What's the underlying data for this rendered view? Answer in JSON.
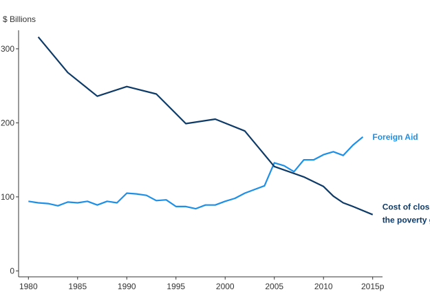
{
  "chart_data": {
    "type": "line",
    "unit_label": "$ Billions",
    "x_tick_labels": [
      "1980",
      "1985",
      "1990",
      "1995",
      "2000",
      "2005",
      "2010",
      "2015p"
    ],
    "x_ticks": [
      1980,
      1985,
      1990,
      1995,
      2000,
      2005,
      2010,
      2015
    ],
    "y_ticks": [
      0,
      100,
      200,
      300
    ],
    "xlim": [
      1979,
      2016
    ],
    "ylim": [
      -8,
      325
    ],
    "grid": false,
    "series": [
      {
        "name": "Foreign Aid",
        "label_lines": [
          "Foreign Aid"
        ],
        "color": "#1e8fe6",
        "points": [
          [
            1980,
            94
          ],
          [
            1981,
            92
          ],
          [
            1982,
            91
          ],
          [
            1983,
            88
          ],
          [
            1984,
            93
          ],
          [
            1985,
            92
          ],
          [
            1986,
            94
          ],
          [
            1987,
            89
          ],
          [
            1988,
            94
          ],
          [
            1989,
            92
          ],
          [
            1990,
            105
          ],
          [
            1991,
            104
          ],
          [
            1992,
            102
          ],
          [
            1993,
            95
          ],
          [
            1994,
            96
          ],
          [
            1995,
            87
          ],
          [
            1996,
            87
          ],
          [
            1997,
            84
          ],
          [
            1998,
            89
          ],
          [
            1999,
            89
          ],
          [
            2000,
            94
          ],
          [
            2001,
            98
          ],
          [
            2002,
            105
          ],
          [
            2003,
            110
          ],
          [
            2004,
            115
          ],
          [
            2005,
            146
          ],
          [
            2006,
            142
          ],
          [
            2007,
            134
          ],
          [
            2008,
            150
          ],
          [
            2009,
            150
          ],
          [
            2010,
            157
          ],
          [
            2011,
            161
          ],
          [
            2012,
            156
          ],
          [
            2013,
            170
          ],
          [
            2014,
            181
          ]
        ]
      },
      {
        "name": "Cost of closing the poverty gap",
        "label_lines": [
          "Cost of closing",
          "the poverty gap"
        ],
        "color": "#0d3a66",
        "points": [
          [
            1981,
            316
          ],
          [
            1984,
            268
          ],
          [
            1987,
            236
          ],
          [
            1990,
            249
          ],
          [
            1993,
            239
          ],
          [
            1996,
            199
          ],
          [
            1999,
            205
          ],
          [
            2002,
            189
          ],
          [
            2005,
            141
          ],
          [
            2008,
            127
          ],
          [
            2010,
            114
          ],
          [
            2011,
            101
          ],
          [
            2012,
            92
          ],
          [
            2013,
            87
          ],
          [
            2015,
            76
          ]
        ]
      }
    ]
  }
}
